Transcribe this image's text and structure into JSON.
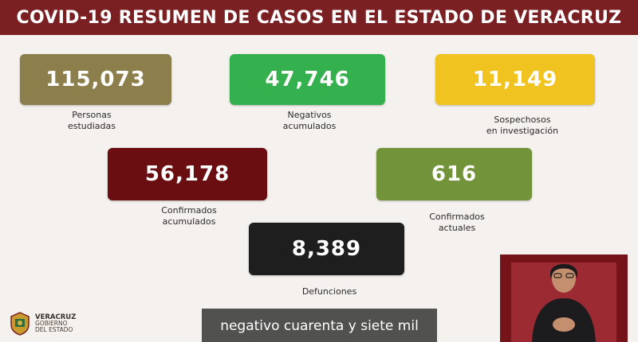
{
  "header": {
    "title": "COVID-19 RESUMEN DE CASOS EN EL ESTADO DE VERACRUZ"
  },
  "stats": [
    {
      "value": "115,073",
      "label_lines": [
        "Personas",
        "estudiadas"
      ],
      "color": "#8c7f4c"
    },
    {
      "value": "47,746",
      "label_lines": [
        "Negativos",
        "acumulados"
      ],
      "color": "#35b04e"
    },
    {
      "value": "11,149",
      "label_lines": [
        "Sospechosos",
        "en investigación"
      ],
      "color": "#f1c320"
    },
    {
      "value": "56,178",
      "label_lines": [
        "Confirmados",
        "acumulados"
      ],
      "color": "#6b0e11"
    },
    {
      "value": "616",
      "label_lines": [
        "Confirmados",
        "actuales"
      ],
      "color": "#73933b"
    },
    {
      "value": "8,389",
      "label_lines": [
        "Defunciones"
      ],
      "color": "#1e1e1e"
    }
  ],
  "logo": {
    "lines": [
      "VERACRUZ",
      "GOBIERNO",
      "DEL ESTADO"
    ],
    "icon": "state-seal-icon"
  },
  "caption": {
    "text": "negativo cuarenta y siete mil"
  },
  "colors": {
    "banner": "#7a1f22",
    "background": "#f4f1ee",
    "interpreter_bg": "#75131a"
  }
}
